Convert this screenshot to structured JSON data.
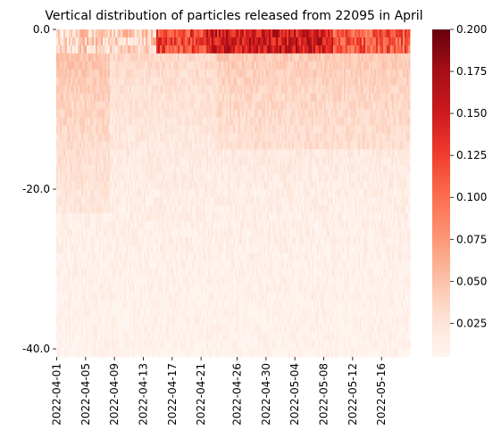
{
  "chart_data": {
    "type": "heatmap",
    "title": "Vertical distribution of particles released from 22095 in April",
    "xlabel": "",
    "ylabel": "",
    "colormap": "Reds",
    "colorbar": {
      "min": 0.005,
      "max": 0.2,
      "ticks": [
        0.025,
        0.05,
        0.075,
        0.1,
        0.125,
        0.15,
        0.175,
        0.2
      ],
      "tick_labels": [
        "0.025",
        "0.050",
        "0.075",
        "0.100",
        "0.125",
        "0.150",
        "0.175",
        "0.200"
      ]
    },
    "x_range": [
      "2022-04-01",
      "2022-05-20"
    ],
    "x_tick_labels": [
      "2022-04-01",
      "2022-04-05",
      "2022-04-09",
      "2022-04-13",
      "2022-04-17",
      "2022-04-21",
      "2022-04-26",
      "2022-04-30",
      "2022-05-04",
      "2022-05-08",
      "2022-05-12",
      "2022-05-16"
    ],
    "y_range": [
      0.0,
      -41.0
    ],
    "y_tick_labels": [
      "0.0",
      "-20.0",
      "-40.0"
    ],
    "y_ticks": [
      0.0,
      -20.0,
      -40.0
    ],
    "colors": {
      "low": "#fff5f0",
      "high": "#67000d"
    }
  }
}
